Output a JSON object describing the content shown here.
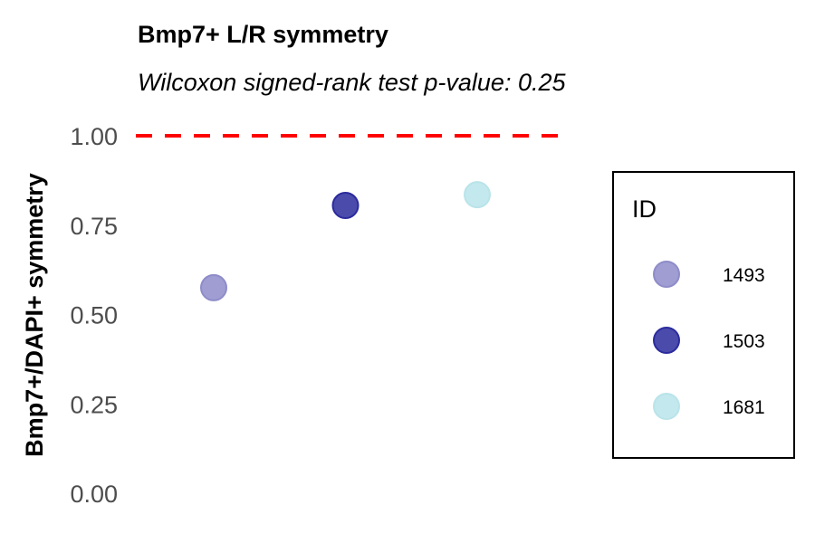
{
  "chart_data": {
    "type": "scatter",
    "title": "Bmp7+ L/R symmetry",
    "subtitle": "Wilcoxon signed-rank test p-value: 0.25",
    "xlabel": "",
    "ylabel": "Bmp7+/DAPI+ symmetry",
    "ylim": [
      0,
      1
    ],
    "yticks": [
      "0.00",
      "0.25",
      "0.50",
      "0.75",
      "1.00"
    ],
    "grid": false,
    "reference_line": {
      "y": 1.0,
      "color": "#ff0000",
      "style": "dashed"
    },
    "legend": {
      "title": "ID",
      "placement": "right"
    },
    "series": [
      {
        "name": "1493",
        "x": 1,
        "y": 0.575,
        "color": "#8e8cc9"
      },
      {
        "name": "1503",
        "x": 2,
        "y": 0.805,
        "color": "#2b2b9e"
      },
      {
        "name": "1681",
        "x": 3,
        "y": 0.835,
        "color": "#b9e4ea"
      }
    ]
  }
}
